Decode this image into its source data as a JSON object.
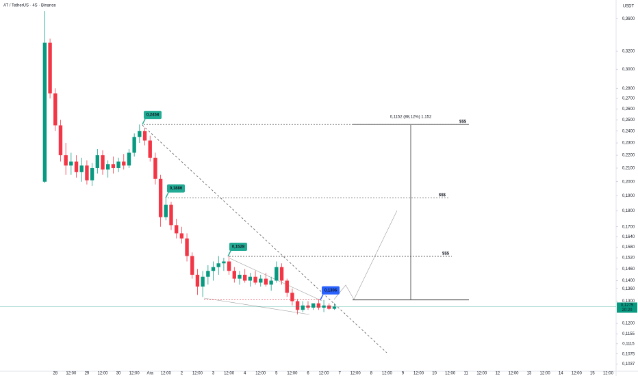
{
  "chart_data": {
    "type": "candlestick",
    "title": "AT / TetherUS · 4S · Binance",
    "currency": "USDT",
    "log_scale": true,
    "up_color": "#089981",
    "down_color": "#f23645",
    "x": [
      -0.667,
      -0.333,
      0,
      0.333,
      0.667,
      1,
      1.333,
      1.667,
      2,
      2.333,
      2.667,
      3,
      3.333,
      3.667,
      4,
      4.333,
      4.667,
      5,
      5.333,
      5.667,
      6,
      6.333,
      6.667,
      7,
      7.333,
      7.667,
      8,
      8.333,
      8.667,
      9,
      9.333,
      9.667,
      10,
      10.333,
      10.667,
      11,
      11.333,
      11.667,
      12,
      12.333,
      12.667,
      13,
      13.333,
      13.667,
      14,
      14.333,
      14.667,
      15,
      15.333,
      15.667,
      16,
      16.333,
      16.667,
      17,
      17.333,
      17.667
    ],
    "open": [
      0.2,
      0.33,
      0.275,
      0.245,
      0.22,
      0.212,
      0.215,
      0.207,
      0.212,
      0.201,
      0.21,
      0.22,
      0.209,
      0.213,
      0.21,
      0.215,
      0.212,
      0.222,
      0.235,
      0.24,
      0.232,
      0.218,
      0.202,
      0.176,
      0.184,
      0.171,
      0.166,
      0.163,
      0.153,
      0.143,
      0.137,
      0.142,
      0.145,
      0.147,
      0.149,
      0.15,
      0.145,
      0.141,
      0.143,
      0.14,
      0.142,
      0.139,
      0.141,
      0.138,
      0.14,
      0.147,
      0.14,
      0.134,
      0.13,
      0.126,
      0.128,
      0.127,
      0.129,
      0.127,
      0.128,
      0.1265
    ],
    "high": [
      0.37,
      0.335,
      0.28,
      0.25,
      0.23,
      0.222,
      0.22,
      0.218,
      0.216,
      0.214,
      0.225,
      0.224,
      0.216,
      0.219,
      0.218,
      0.221,
      0.225,
      0.238,
      0.2458,
      0.243,
      0.236,
      0.222,
      0.205,
      0.1886,
      0.186,
      0.175,
      0.17,
      0.166,
      0.155,
      0.146,
      0.145,
      0.148,
      0.15,
      0.153,
      0.152,
      0.1528,
      0.147,
      0.145,
      0.146,
      0.144,
      0.145,
      0.143,
      0.144,
      0.142,
      0.15,
      0.149,
      0.141,
      0.136,
      0.131,
      0.13,
      0.13,
      0.129,
      0.131,
      0.1306,
      0.129,
      0.129
    ],
    "low": [
      0.199,
      0.27,
      0.24,
      0.215,
      0.205,
      0.205,
      0.203,
      0.2,
      0.198,
      0.197,
      0.206,
      0.205,
      0.203,
      0.206,
      0.207,
      0.209,
      0.21,
      0.219,
      0.23,
      0.228,
      0.215,
      0.198,
      0.17,
      0.174,
      0.168,
      0.163,
      0.16,
      0.15,
      0.141,
      0.133,
      0.132,
      0.138,
      0.14,
      0.143,
      0.145,
      0.143,
      0.139,
      0.138,
      0.139,
      0.137,
      0.138,
      0.137,
      0.137,
      0.135,
      0.139,
      0.138,
      0.132,
      0.128,
      0.124,
      0.125,
      0.126,
      0.126,
      0.126,
      0.125,
      0.126,
      0.126
    ],
    "close": [
      0.33,
      0.275,
      0.245,
      0.22,
      0.212,
      0.215,
      0.207,
      0.212,
      0.201,
      0.21,
      0.22,
      0.209,
      0.213,
      0.21,
      0.215,
      0.212,
      0.222,
      0.235,
      0.24,
      0.232,
      0.218,
      0.202,
      0.176,
      0.184,
      0.171,
      0.166,
      0.163,
      0.153,
      0.143,
      0.137,
      0.142,
      0.145,
      0.147,
      0.149,
      0.15,
      0.145,
      0.141,
      0.143,
      0.14,
      0.142,
      0.139,
      0.141,
      0.138,
      0.14,
      0.147,
      0.14,
      0.134,
      0.13,
      0.126,
      0.128,
      0.127,
      0.129,
      0.127,
      0.128,
      0.1265,
      0.1275
    ],
    "xlim": [
      -3.5,
      35.5
    ],
    "xticks": [
      {
        "value": 0,
        "label": "28"
      },
      {
        "value": 1,
        "label": "12:00"
      },
      {
        "value": 2,
        "label": "29"
      },
      {
        "value": 3,
        "label": "12:00"
      },
      {
        "value": 4,
        "label": "30"
      },
      {
        "value": 5,
        "label": "12:00"
      },
      {
        "value": 6,
        "label": "Ara"
      },
      {
        "value": 7,
        "label": "12:00"
      },
      {
        "value": 8,
        "label": "2"
      },
      {
        "value": 9,
        "label": "12:00"
      },
      {
        "value": 10,
        "label": "3"
      },
      {
        "value": 11,
        "label": "12:00"
      },
      {
        "value": 12,
        "label": "4"
      },
      {
        "value": 13,
        "label": "12:00"
      },
      {
        "value": 14,
        "label": "5"
      },
      {
        "value": 15,
        "label": "12:00"
      },
      {
        "value": 16,
        "label": "6"
      },
      {
        "value": 17,
        "label": "12:00"
      },
      {
        "value": 18,
        "label": "7"
      },
      {
        "value": 19,
        "label": "12:00"
      },
      {
        "value": 20,
        "label": "8"
      },
      {
        "value": 21,
        "label": "12:00"
      },
      {
        "value": 22,
        "label": "9"
      },
      {
        "value": 23,
        "label": "12:00"
      },
      {
        "value": 24,
        "label": "10"
      },
      {
        "value": 25,
        "label": "12:00"
      },
      {
        "value": 26,
        "label": "11"
      },
      {
        "value": 27,
        "label": "12:00"
      },
      {
        "value": 28,
        "label": "12"
      },
      {
        "value": 29,
        "label": "12:00"
      },
      {
        "value": 30,
        "label": "13"
      },
      {
        "value": 31,
        "label": "12:00"
      },
      {
        "value": 32,
        "label": "14"
      },
      {
        "value": 33,
        "label": "12:00"
      },
      {
        "value": 34,
        "label": "15"
      },
      {
        "value": 35,
        "label": "12:00"
      }
    ],
    "ylim": [
      0.101,
      0.385
    ],
    "yticks": [
      {
        "value": 0.36,
        "label": "0,3600"
      },
      {
        "value": 0.32,
        "label": "0,3200"
      },
      {
        "value": 0.3,
        "label": "0,3000"
      },
      {
        "value": 0.28,
        "label": "0,2800"
      },
      {
        "value": 0.27,
        "label": "0,2700"
      },
      {
        "value": 0.26,
        "label": "0,2600"
      },
      {
        "value": 0.25,
        "label": "0,2500"
      },
      {
        "value": 0.24,
        "label": "0,2400"
      },
      {
        "value": 0.23,
        "label": "0,2300"
      },
      {
        "value": 0.22,
        "label": "0,2200"
      },
      {
        "value": 0.21,
        "label": "0,2100"
      },
      {
        "value": 0.2,
        "label": "0,2000"
      },
      {
        "value": 0.19,
        "label": "0,1900"
      },
      {
        "value": 0.18,
        "label": "0,1800"
      },
      {
        "value": 0.17,
        "label": "0,1700"
      },
      {
        "value": 0.164,
        "label": "0,1640"
      },
      {
        "value": 0.158,
        "label": "0,1580"
      },
      {
        "value": 0.152,
        "label": "0,1520"
      },
      {
        "value": 0.146,
        "label": "0,1460"
      },
      {
        "value": 0.14,
        "label": "0,1400"
      },
      {
        "value": 0.136,
        "label": "0,1360"
      },
      {
        "value": 0.13,
        "label": "0,1300"
      },
      {
        "value": 0.12,
        "label": "0,1200"
      },
      {
        "value": 0.1155,
        "label": "0,1155"
      },
      {
        "value": 0.1115,
        "label": "0,1115"
      },
      {
        "value": 0.1075,
        "label": "0,1075"
      },
      {
        "value": 0.1037,
        "label": "0,1037"
      }
    ],
    "annotations": [
      {
        "value": 0.2458,
        "label": "0,2458"
      },
      {
        "value": 0.1886,
        "label": "0,1886"
      },
      {
        "value": 0.1528,
        "label": "0,1528"
      },
      {
        "value": 0.1306,
        "label": "0,1306"
      }
    ],
    "target_labels": [
      "$$$",
      "$$$",
      "$$$"
    ],
    "measure_label": "0,1152 (88,12%) 1.152",
    "last_price": {
      "value": 0.1275,
      "label": "0,1275"
    },
    "countdown": "20:20"
  }
}
